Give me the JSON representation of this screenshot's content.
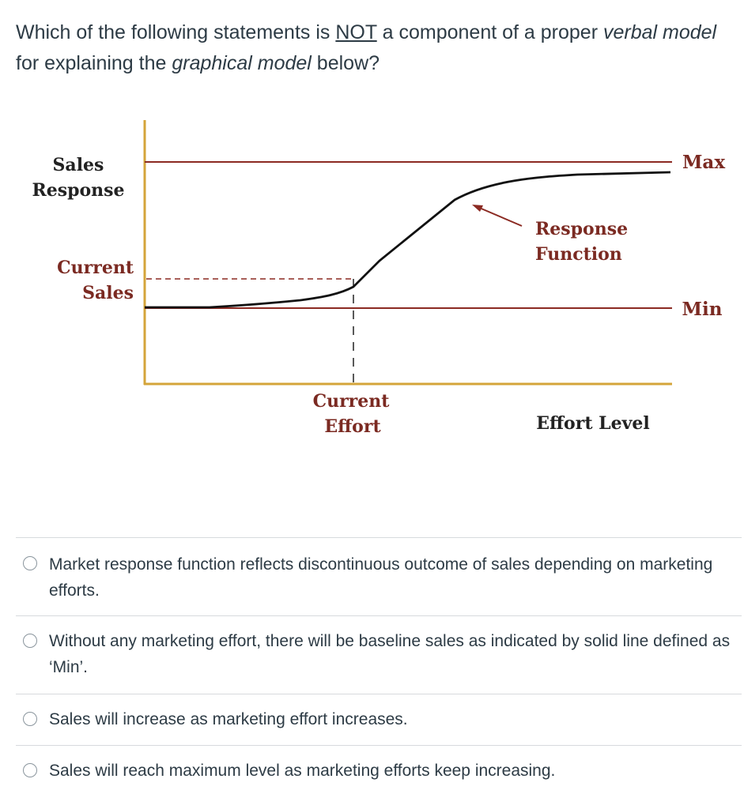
{
  "question": {
    "part1": "Which of the following statements is ",
    "not": "NOT",
    "part2": " a component of a proper ",
    "verbal_model": "verbal model",
    "part3": " for explaining the ",
    "graphical_model": "graphical model",
    "part4": " below?"
  },
  "diagram": {
    "y_axis_label_line1": "Sales",
    "y_axis_label_line2": "Response",
    "current_sales_line1": "Current",
    "current_sales_line2": "Sales",
    "max_label": "Max",
    "min_label": "Min",
    "response_function_line1": "Response",
    "response_function_line2": "Function",
    "current_effort_line1": "Current",
    "current_effort_line2": "Effort",
    "x_axis_label": "Effort Level",
    "colors": {
      "axis": "#d4a43a",
      "max_min_line": "#8b2a22",
      "curve": "#111111",
      "label_red": "#7b2a22"
    }
  },
  "options": [
    {
      "text": "Market response function reflects discontinuous outcome of sales depending on marketing efforts."
    },
    {
      "text": "Without any marketing effort, there will be baseline sales as indicated by solid line defined as ‘Min’."
    },
    {
      "text": "Sales will increase as marketing effort increases."
    },
    {
      "text": "Sales will reach maximum level as marketing efforts keep increasing."
    }
  ]
}
